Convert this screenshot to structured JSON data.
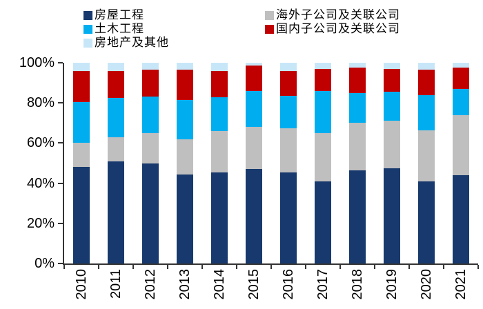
{
  "legend": {
    "columns": [
      {
        "items": [
          {
            "name": "housing-engineering",
            "label": "房屋工程",
            "color": "#17396d"
          },
          {
            "name": "civil-engineering",
            "label": "土木工程",
            "color": "#00aeef"
          },
          {
            "name": "real-estate-and-others",
            "label": "房地产及其他",
            "color": "#c7e7f8"
          }
        ]
      },
      {
        "items": [
          {
            "name": "overseas-subsidiaries",
            "label": "海外子公司及关联公司",
            "color": "#bfbfbf"
          },
          {
            "name": "domestic-subsidiaries",
            "label": "国内子公司及关联公司",
            "color": "#c00000"
          }
        ]
      }
    ]
  },
  "chart_data": {
    "type": "bar",
    "stacked": true,
    "unit": "percent",
    "title": "",
    "xlabel": "",
    "ylabel": "",
    "ylim": [
      0,
      100
    ],
    "grid": false,
    "legend_position": "top",
    "categories": [
      "2010",
      "2011",
      "2012",
      "2013",
      "2014",
      "2015",
      "2016",
      "2017",
      "2018",
      "2019",
      "2020",
      "2021"
    ],
    "y_tick_labels": [
      "0%",
      "20%",
      "40%",
      "60%",
      "80%",
      "100%"
    ],
    "series": [
      {
        "name": "房屋工程",
        "color": "#17396d",
        "values": [
          48,
          51,
          50,
          44.5,
          45.5,
          47,
          45.5,
          41,
          46.5,
          47.5,
          41,
          44
        ]
      },
      {
        "name": "海外子公司及关联公司",
        "color": "#bfbfbf",
        "values": [
          12,
          12,
          15,
          17.5,
          20.5,
          21,
          22,
          24,
          23.5,
          23.5,
          25.5,
          30
        ]
      },
      {
        "name": "土木工程",
        "color": "#00aeef",
        "values": [
          20.5,
          19.5,
          18,
          19.5,
          17,
          18,
          16,
          21,
          15,
          14.5,
          17.5,
          13
        ]
      },
      {
        "name": "国内子公司及关联公司",
        "color": "#c00000",
        "values": [
          15.5,
          13.5,
          13.5,
          15,
          13,
          12.5,
          12.5,
          11,
          12.5,
          11.5,
          12.5,
          10.5
        ]
      },
      {
        "name": "房地产及其他",
        "color": "#c7e7f8",
        "values": [
          4,
          4,
          3.5,
          3.5,
          4,
          1.5,
          4,
          3,
          2.5,
          3,
          3.5,
          2.5
        ]
      }
    ],
    "axis_color": "#333333",
    "background_color": "#ffffff"
  }
}
